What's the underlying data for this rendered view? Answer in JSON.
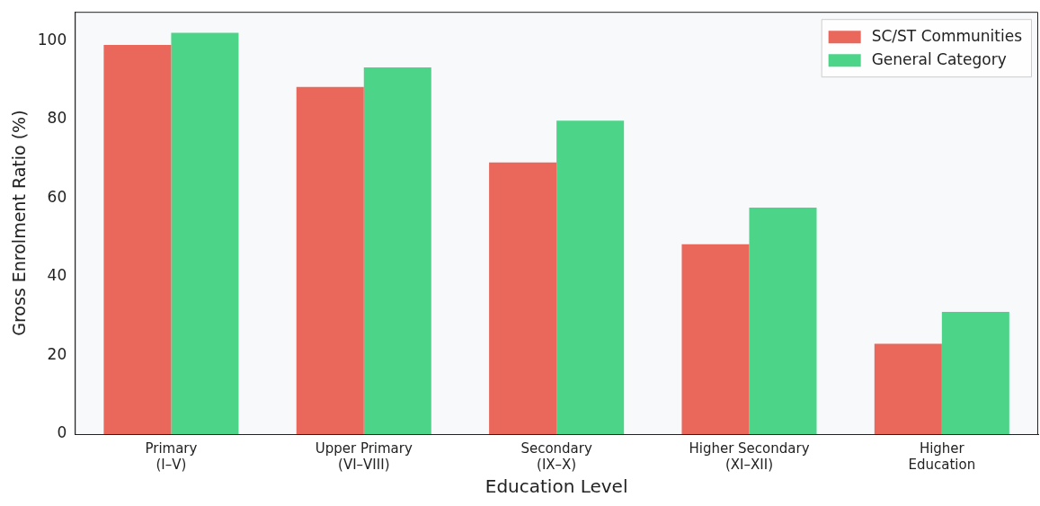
{
  "chart_data": {
    "type": "bar",
    "xlabel": "Education Level",
    "ylabel": "Gross Enrolment Ratio (%)",
    "categories": [
      "Primary\n(I–V)",
      "Upper Primary\n(VI–VIII)",
      "Secondary\n(IX–X)",
      "Higher Secondary\n(XI–XII)",
      "Higher\nEducation"
    ],
    "series": [
      {
        "name": "SC/ST Communities",
        "color": "#ea675b",
        "values": [
          99.0,
          88.3,
          69.1,
          48.3,
          23.0
        ]
      },
      {
        "name": "General Category",
        "color": "#4cd488",
        "values": [
          102.1,
          93.3,
          79.7,
          57.6,
          31.1
        ]
      }
    ],
    "ylim": [
      0,
      107.4
    ],
    "yticks": [
      0,
      20,
      40,
      60,
      80,
      100
    ],
    "grid": false,
    "legend": "top right"
  }
}
